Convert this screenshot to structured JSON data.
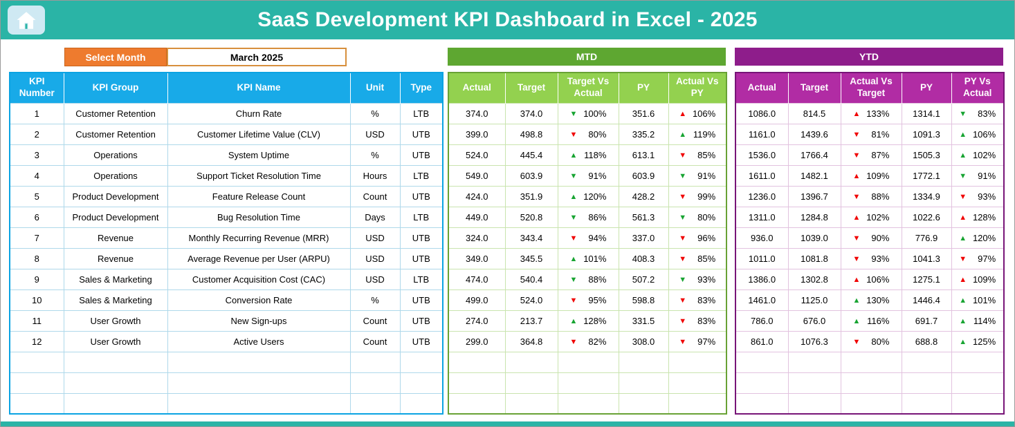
{
  "header": {
    "title": "SaaS Development KPI Dashboard in Excel - 2025"
  },
  "controls": {
    "select_month_label": "Select Month",
    "selected_month": "March 2025"
  },
  "left_table": {
    "headers": [
      "KPI Number",
      "KPI Group",
      "KPI Name",
      "Unit",
      "Type"
    ]
  },
  "mtd_table": {
    "title": "MTD",
    "headers": [
      "Actual",
      "Target",
      "Target Vs Actual",
      "PY",
      "Actual Vs PY"
    ]
  },
  "ytd_table": {
    "title": "YTD",
    "headers": [
      "Actual",
      "Target",
      "Actual Vs Target",
      "PY",
      "PY Vs Actual"
    ]
  },
  "icons": {
    "home": "home-icon",
    "up": "up-triangle-icon",
    "down": "down-triangle-icon"
  },
  "colors": {
    "banner_teal": "#2AB4A6",
    "select_month_orange": "#EE7B2E",
    "left_header_blue": "#18AAE8",
    "mtd_banner_green": "#5EA731",
    "mtd_header_green": "#93D14F",
    "ytd_banner_purple": "#8E1D8B",
    "ytd_header_magenta": "#B12CA4",
    "arrow_green": "#18A432",
    "arrow_red": "#F00000"
  },
  "empty_rows": 3,
  "rows": [
    {
      "number": "1",
      "group": "Customer Retention",
      "name": "Churn Rate",
      "unit": "%",
      "type": "LTB",
      "mtd": {
        "actual": "374.0",
        "target": "374.0",
        "target_vs_actual": {
          "dir": "down",
          "color": "green",
          "value": "100%"
        },
        "py": "351.6",
        "actual_vs_py": {
          "dir": "up",
          "color": "red",
          "value": "106%"
        }
      },
      "ytd": {
        "actual": "1086.0",
        "target": "814.5",
        "actual_vs_target": {
          "dir": "up",
          "color": "red",
          "value": "133%"
        },
        "py": "1314.1",
        "py_vs_actual": {
          "dir": "down",
          "color": "green",
          "value": "83%"
        }
      }
    },
    {
      "number": "2",
      "group": "Customer Retention",
      "name": "Customer Lifetime Value (CLV)",
      "unit": "USD",
      "type": "UTB",
      "mtd": {
        "actual": "399.0",
        "target": "498.8",
        "target_vs_actual": {
          "dir": "down",
          "color": "red",
          "value": "80%"
        },
        "py": "335.2",
        "actual_vs_py": {
          "dir": "up",
          "color": "green",
          "value": "119%"
        }
      },
      "ytd": {
        "actual": "1161.0",
        "target": "1439.6",
        "actual_vs_target": {
          "dir": "down",
          "color": "red",
          "value": "81%"
        },
        "py": "1091.3",
        "py_vs_actual": {
          "dir": "up",
          "color": "green",
          "value": "106%"
        }
      }
    },
    {
      "number": "3",
      "group": "Operations",
      "name": "System Uptime",
      "unit": "%",
      "type": "UTB",
      "mtd": {
        "actual": "524.0",
        "target": "445.4",
        "target_vs_actual": {
          "dir": "up",
          "color": "green",
          "value": "118%"
        },
        "py": "613.1",
        "actual_vs_py": {
          "dir": "down",
          "color": "red",
          "value": "85%"
        }
      },
      "ytd": {
        "actual": "1536.0",
        "target": "1766.4",
        "actual_vs_target": {
          "dir": "down",
          "color": "red",
          "value": "87%"
        },
        "py": "1505.3",
        "py_vs_actual": {
          "dir": "up",
          "color": "green",
          "value": "102%"
        }
      }
    },
    {
      "number": "4",
      "group": "Operations",
      "name": "Support Ticket Resolution Time",
      "unit": "Hours",
      "type": "LTB",
      "mtd": {
        "actual": "549.0",
        "target": "603.9",
        "target_vs_actual": {
          "dir": "down",
          "color": "green",
          "value": "91%"
        },
        "py": "603.9",
        "actual_vs_py": {
          "dir": "down",
          "color": "green",
          "value": "91%"
        }
      },
      "ytd": {
        "actual": "1611.0",
        "target": "1482.1",
        "actual_vs_target": {
          "dir": "up",
          "color": "red",
          "value": "109%"
        },
        "py": "1772.1",
        "py_vs_actual": {
          "dir": "down",
          "color": "green",
          "value": "91%"
        }
      }
    },
    {
      "number": "5",
      "group": "Product Development",
      "name": "Feature Release Count",
      "unit": "Count",
      "type": "UTB",
      "mtd": {
        "actual": "424.0",
        "target": "351.9",
        "target_vs_actual": {
          "dir": "up",
          "color": "green",
          "value": "120%"
        },
        "py": "428.2",
        "actual_vs_py": {
          "dir": "down",
          "color": "red",
          "value": "99%"
        }
      },
      "ytd": {
        "actual": "1236.0",
        "target": "1396.7",
        "actual_vs_target": {
          "dir": "down",
          "color": "red",
          "value": "88%"
        },
        "py": "1334.9",
        "py_vs_actual": {
          "dir": "down",
          "color": "red",
          "value": "93%"
        }
      }
    },
    {
      "number": "6",
      "group": "Product Development",
      "name": "Bug Resolution Time",
      "unit": "Days",
      "type": "LTB",
      "mtd": {
        "actual": "449.0",
        "target": "520.8",
        "target_vs_actual": {
          "dir": "down",
          "color": "green",
          "value": "86%"
        },
        "py": "561.3",
        "actual_vs_py": {
          "dir": "down",
          "color": "green",
          "value": "80%"
        }
      },
      "ytd": {
        "actual": "1311.0",
        "target": "1284.8",
        "actual_vs_target": {
          "dir": "up",
          "color": "red",
          "value": "102%"
        },
        "py": "1022.6",
        "py_vs_actual": {
          "dir": "up",
          "color": "red",
          "value": "128%"
        }
      }
    },
    {
      "number": "7",
      "group": "Revenue",
      "name": "Monthly Recurring Revenue (MRR)",
      "unit": "USD",
      "type": "UTB",
      "mtd": {
        "actual": "324.0",
        "target": "343.4",
        "target_vs_actual": {
          "dir": "down",
          "color": "red",
          "value": "94%"
        },
        "py": "337.0",
        "actual_vs_py": {
          "dir": "down",
          "color": "red",
          "value": "96%"
        }
      },
      "ytd": {
        "actual": "936.0",
        "target": "1039.0",
        "actual_vs_target": {
          "dir": "down",
          "color": "red",
          "value": "90%"
        },
        "py": "776.9",
        "py_vs_actual": {
          "dir": "up",
          "color": "green",
          "value": "120%"
        }
      }
    },
    {
      "number": "8",
      "group": "Revenue",
      "name": "Average Revenue per User (ARPU)",
      "unit": "USD",
      "type": "UTB",
      "mtd": {
        "actual": "349.0",
        "target": "345.5",
        "target_vs_actual": {
          "dir": "up",
          "color": "green",
          "value": "101%"
        },
        "py": "408.3",
        "actual_vs_py": {
          "dir": "down",
          "color": "red",
          "value": "85%"
        }
      },
      "ytd": {
        "actual": "1011.0",
        "target": "1081.8",
        "actual_vs_target": {
          "dir": "down",
          "color": "red",
          "value": "93%"
        },
        "py": "1041.3",
        "py_vs_actual": {
          "dir": "down",
          "color": "red",
          "value": "97%"
        }
      }
    },
    {
      "number": "9",
      "group": "Sales & Marketing",
      "name": "Customer Acquisition Cost (CAC)",
      "unit": "USD",
      "type": "LTB",
      "mtd": {
        "actual": "474.0",
        "target": "540.4",
        "target_vs_actual": {
          "dir": "down",
          "color": "green",
          "value": "88%"
        },
        "py": "507.2",
        "actual_vs_py": {
          "dir": "down",
          "color": "green",
          "value": "93%"
        }
      },
      "ytd": {
        "actual": "1386.0",
        "target": "1302.8",
        "actual_vs_target": {
          "dir": "up",
          "color": "red",
          "value": "106%"
        },
        "py": "1275.1",
        "py_vs_actual": {
          "dir": "up",
          "color": "red",
          "value": "109%"
        }
      }
    },
    {
      "number": "10",
      "group": "Sales & Marketing",
      "name": "Conversion Rate",
      "unit": "%",
      "type": "UTB",
      "mtd": {
        "actual": "499.0",
        "target": "524.0",
        "target_vs_actual": {
          "dir": "down",
          "color": "red",
          "value": "95%"
        },
        "py": "598.8",
        "actual_vs_py": {
          "dir": "down",
          "color": "red",
          "value": "83%"
        }
      },
      "ytd": {
        "actual": "1461.0",
        "target": "1125.0",
        "actual_vs_target": {
          "dir": "up",
          "color": "green",
          "value": "130%"
        },
        "py": "1446.4",
        "py_vs_actual": {
          "dir": "up",
          "color": "green",
          "value": "101%"
        }
      }
    },
    {
      "number": "11",
      "group": "User Growth",
      "name": "New Sign-ups",
      "unit": "Count",
      "type": "UTB",
      "mtd": {
        "actual": "274.0",
        "target": "213.7",
        "target_vs_actual": {
          "dir": "up",
          "color": "green",
          "value": "128%"
        },
        "py": "331.5",
        "actual_vs_py": {
          "dir": "down",
          "color": "red",
          "value": "83%"
        }
      },
      "ytd": {
        "actual": "786.0",
        "target": "676.0",
        "actual_vs_target": {
          "dir": "up",
          "color": "green",
          "value": "116%"
        },
        "py": "691.7",
        "py_vs_actual": {
          "dir": "up",
          "color": "green",
          "value": "114%"
        }
      }
    },
    {
      "number": "12",
      "group": "User Growth",
      "name": "Active Users",
      "unit": "Count",
      "type": "UTB",
      "mtd": {
        "actual": "299.0",
        "target": "364.8",
        "target_vs_actual": {
          "dir": "down",
          "color": "red",
          "value": "82%"
        },
        "py": "308.0",
        "actual_vs_py": {
          "dir": "down",
          "color": "red",
          "value": "97%"
        }
      },
      "ytd": {
        "actual": "861.0",
        "target": "1076.3",
        "actual_vs_target": {
          "dir": "down",
          "color": "red",
          "value": "80%"
        },
        "py": "688.8",
        "py_vs_actual": {
          "dir": "up",
          "color": "green",
          "value": "125%"
        }
      }
    }
  ]
}
